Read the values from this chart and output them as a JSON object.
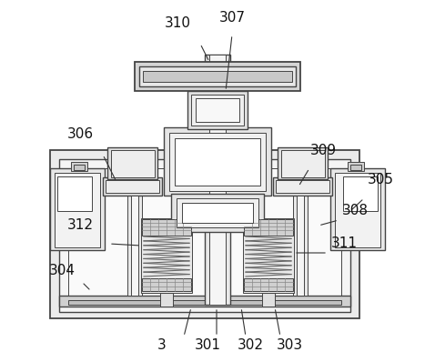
{
  "background_color": "#ffffff",
  "lc": "#444444",
  "lc2": "#555555",
  "fg_light": "#f0f0f0",
  "fg_mid": "#d8d8d8",
  "fg_dark": "#b8b8b8",
  "label_fontsize": 11,
  "labels": [
    "310",
    "307",
    "306",
    "309",
    "305",
    "308",
    "311",
    "312",
    "304",
    "3",
    "301",
    "302",
    "303"
  ]
}
